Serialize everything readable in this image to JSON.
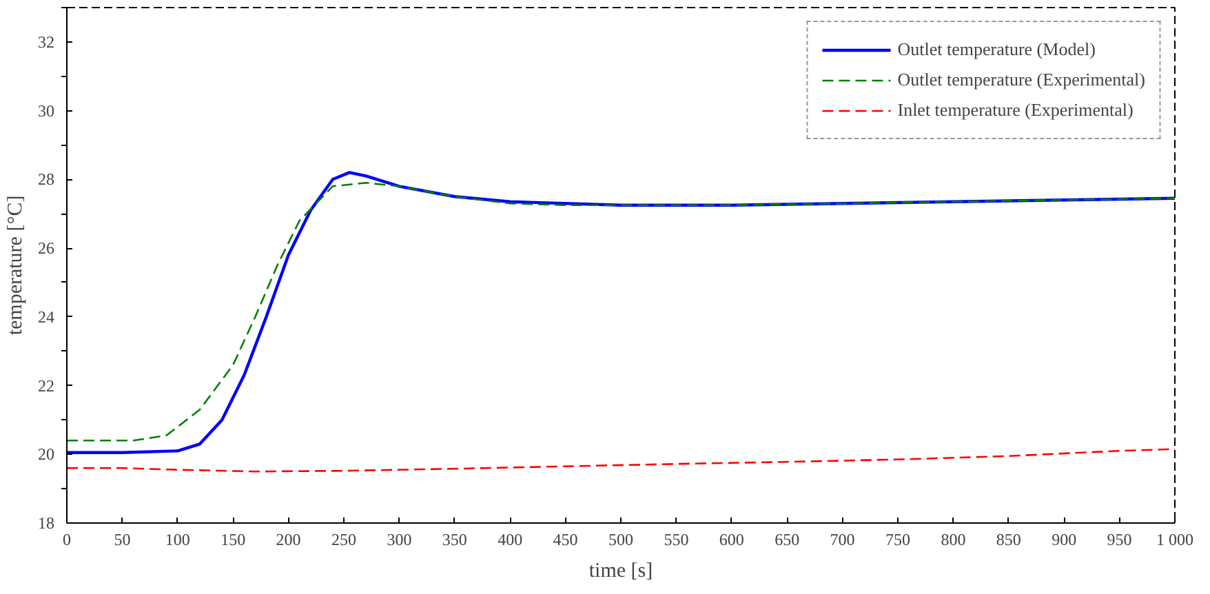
{
  "chart_data": {
    "type": "line",
    "xlabel": "time [s]",
    "ylabel": "temperature [°C]",
    "xlim": [
      0,
      1000
    ],
    "ylim": [
      18,
      33
    ],
    "xticks": [
      0,
      50,
      100,
      150,
      200,
      250,
      300,
      350,
      400,
      450,
      500,
      550,
      600,
      650,
      700,
      750,
      800,
      850,
      900,
      950,
      {
        "value": 1000,
        "label": "1 000"
      }
    ],
    "yticks": [
      18,
      20,
      22,
      24,
      26,
      28,
      30,
      32
    ],
    "grid": false,
    "legend": "top right",
    "marker": "none",
    "series": [
      {
        "name": "Outlet temperature (Model)",
        "color": "#0000ff",
        "line_style": "solid",
        "x": [
          0,
          50,
          100,
          120,
          140,
          160,
          180,
          200,
          220,
          240,
          255,
          270,
          300,
          350,
          400,
          500,
          600,
          700,
          800,
          900,
          1000
        ],
        "values": [
          20.05,
          20.05,
          20.1,
          20.3,
          21.0,
          22.3,
          24.0,
          25.8,
          27.1,
          28.0,
          28.2,
          28.1,
          27.8,
          27.5,
          27.35,
          27.25,
          27.25,
          27.3,
          27.35,
          27.4,
          27.45
        ]
      },
      {
        "name": "Outlet temperature (Experimental)",
        "color": "#008000",
        "line_style": "dashed",
        "x": [
          0,
          60,
          90,
          120,
          150,
          170,
          190,
          210,
          240,
          270,
          300,
          350,
          400,
          450,
          500,
          600,
          700,
          800,
          900,
          1000
        ],
        "values": [
          20.4,
          20.4,
          20.55,
          21.3,
          22.6,
          24.0,
          25.5,
          26.8,
          27.8,
          27.9,
          27.8,
          27.5,
          27.3,
          27.25,
          27.25,
          27.25,
          27.3,
          27.35,
          27.4,
          27.45
        ]
      },
      {
        "name": "Inlet temperature (Experimental)",
        "color": "#ff0000",
        "line_style": "dashed",
        "x": [
          0,
          50,
          100,
          170,
          250,
          350,
          450,
          550,
          650,
          750,
          850,
          950,
          1000
        ],
        "values": [
          19.6,
          19.6,
          19.55,
          19.5,
          19.52,
          19.58,
          19.65,
          19.72,
          19.78,
          19.85,
          19.95,
          20.1,
          20.15
        ]
      }
    ]
  }
}
